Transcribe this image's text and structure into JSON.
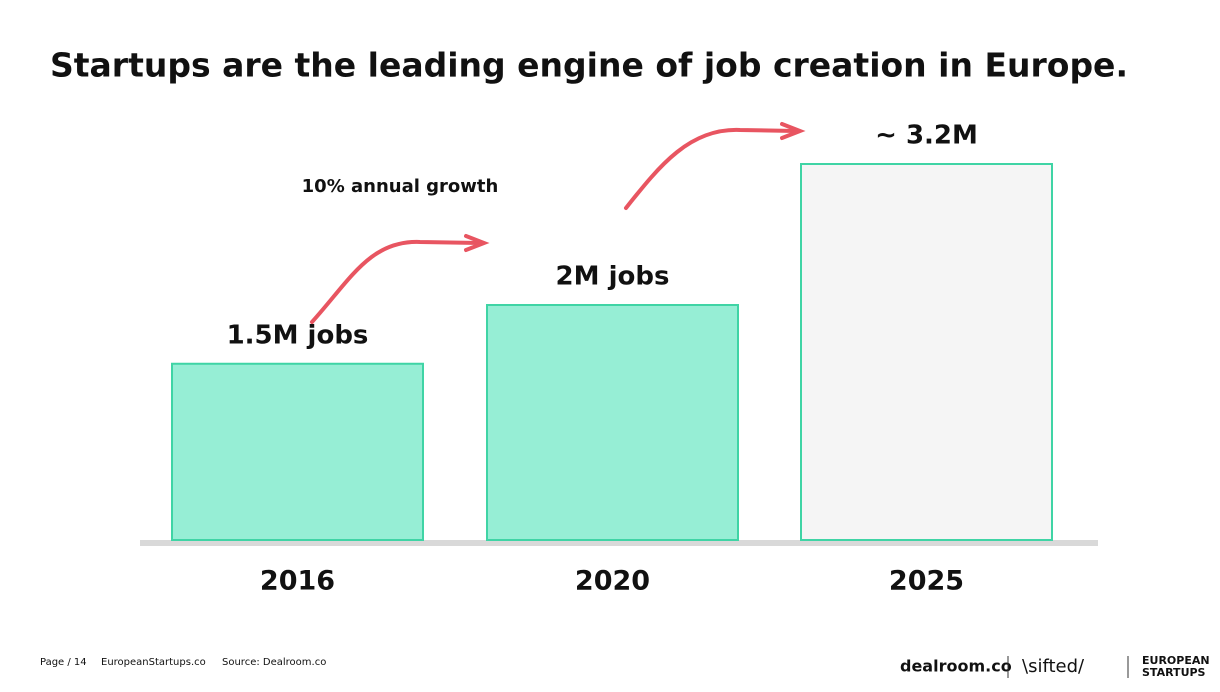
{
  "chart_data": {
    "type": "bar",
    "title": "Startups are the leading engine of job creation in Europe.",
    "annotation": "10% annual growth",
    "categories": [
      "2016",
      "2020",
      "2025"
    ],
    "values": [
      1.5,
      2,
      3.2
    ],
    "value_labels": [
      "1.5M jobs",
      "2M jobs",
      "~ 3.2M"
    ],
    "colors": [
      "#96eed5",
      "#96eed5",
      "#f5f5f5"
    ],
    "edge_color": "#3fd4a5"
  },
  "footer": {
    "page": "Page / 14",
    "site": "EuropeanStartups.co",
    "source": "Source: Dealroom.co",
    "logos": [
      "dealroom.co",
      "\\sifted/",
      "EUROPEAN",
      "STARTUPS"
    ]
  }
}
